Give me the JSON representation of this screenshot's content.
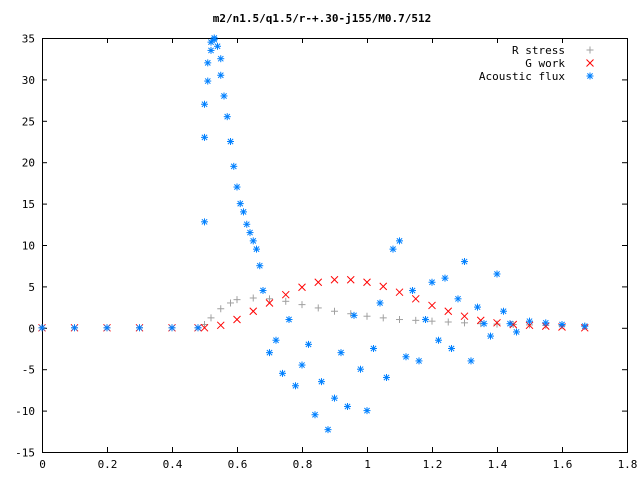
{
  "chart_data": {
    "type": "scatter",
    "title": "m2/n1.5/q1.5/r-+.30-j155/M0.7/512",
    "xlim": [
      0,
      1.8
    ],
    "ylim": [
      -15,
      35
    ],
    "x_ticks": [
      "0",
      "0.2",
      "0.4",
      "0.6",
      "0.8",
      "1",
      "1.2",
      "1.4",
      "1.6",
      "1.8"
    ],
    "x_tick_values": [
      0,
      0.2,
      0.4,
      0.6,
      0.8,
      1.0,
      1.2,
      1.4,
      1.6,
      1.8
    ],
    "y_ticks": [
      "-15",
      "-10",
      "-5",
      "0",
      "5",
      "10",
      "15",
      "20",
      "25",
      "30",
      "35"
    ],
    "y_tick_values": [
      -15,
      -10,
      -5,
      0,
      5,
      10,
      15,
      20,
      25,
      30,
      35
    ],
    "grid": false,
    "legend_position": "top-right",
    "series": [
      {
        "name": "R stress",
        "marker": "plus",
        "color": "#a0a0a0",
        "x": [
          0.0,
          0.1,
          0.2,
          0.3,
          0.4,
          0.48,
          0.5,
          0.52,
          0.55,
          0.58,
          0.6,
          0.65,
          0.7,
          0.75,
          0.8,
          0.85,
          0.9,
          0.95,
          1.0,
          1.05,
          1.1,
          1.15,
          1.2,
          1.25,
          1.3,
          1.35,
          1.4,
          1.45,
          1.5,
          1.55,
          1.6,
          1.67
        ],
        "y": [
          0,
          0,
          0,
          0,
          0,
          0,
          0.4,
          1.2,
          2.3,
          3.0,
          3.4,
          3.6,
          3.5,
          3.2,
          2.8,
          2.4,
          2.0,
          1.7,
          1.4,
          1.2,
          1.0,
          0.9,
          0.8,
          0.7,
          0.6,
          0.5,
          0.45,
          0.4,
          0.35,
          0.3,
          0.25,
          0.2
        ]
      },
      {
        "name": "G work",
        "marker": "cross",
        "color": "#ff0000",
        "x": [
          0.0,
          0.1,
          0.2,
          0.3,
          0.4,
          0.48,
          0.5,
          0.55,
          0.6,
          0.65,
          0.7,
          0.75,
          0.8,
          0.85,
          0.9,
          0.95,
          1.0,
          1.05,
          1.1,
          1.15,
          1.2,
          1.25,
          1.3,
          1.35,
          1.4,
          1.45,
          1.5,
          1.55,
          1.6,
          1.67
        ],
        "y": [
          0,
          0,
          0,
          0,
          0,
          0,
          0.0,
          0.3,
          1.0,
          2.0,
          3.0,
          4.0,
          4.9,
          5.5,
          5.8,
          5.8,
          5.5,
          5.0,
          4.3,
          3.5,
          2.7,
          2.0,
          1.4,
          0.9,
          0.6,
          0.4,
          0.3,
          0.2,
          0.1,
          0.0
        ]
      },
      {
        "name": "Acoustic flux",
        "marker": "star",
        "color": "#0080ff",
        "x": [
          0.0,
          0.1,
          0.2,
          0.3,
          0.4,
          0.48,
          0.5,
          0.5,
          0.5,
          0.51,
          0.51,
          0.52,
          0.52,
          0.53,
          0.53,
          0.54,
          0.55,
          0.55,
          0.56,
          0.57,
          0.58,
          0.59,
          0.6,
          0.61,
          0.62,
          0.63,
          0.64,
          0.65,
          0.66,
          0.67,
          0.68,
          0.7,
          0.72,
          0.74,
          0.76,
          0.78,
          0.8,
          0.82,
          0.84,
          0.86,
          0.88,
          0.9,
          0.92,
          0.94,
          0.96,
          0.98,
          1.0,
          1.02,
          1.04,
          1.06,
          1.08,
          1.1,
          1.12,
          1.14,
          1.16,
          1.18,
          1.2,
          1.22,
          1.24,
          1.26,
          1.28,
          1.3,
          1.32,
          1.34,
          1.36,
          1.38,
          1.4,
          1.42,
          1.44,
          1.46,
          1.5,
          1.55,
          1.6,
          1.67
        ],
        "y": [
          0,
          0,
          0,
          0,
          0,
          0,
          12.8,
          23.0,
          27.0,
          29.8,
          32.0,
          33.5,
          34.5,
          35.0,
          34.8,
          34.0,
          32.5,
          30.5,
          28.0,
          25.5,
          22.5,
          19.5,
          17.0,
          15.0,
          14.0,
          12.5,
          11.5,
          10.5,
          9.5,
          7.5,
          4.5,
          -3.0,
          -1.5,
          -5.5,
          1.0,
          -7.0,
          -4.5,
          -2.0,
          -10.5,
          -6.5,
          -12.3,
          -8.5,
          -3.0,
          -9.5,
          1.5,
          -5.0,
          -10.0,
          -2.5,
          3.0,
          -6.0,
          9.5,
          10.5,
          -3.5,
          4.5,
          -4.0,
          1.0,
          5.5,
          -1.5,
          6.0,
          -2.5,
          3.5,
          8.0,
          -4.0,
          2.5,
          0.5,
          -1.0,
          6.5,
          2.0,
          0.5,
          -0.5,
          0.8,
          0.6,
          0.4,
          0.2
        ]
      }
    ]
  }
}
